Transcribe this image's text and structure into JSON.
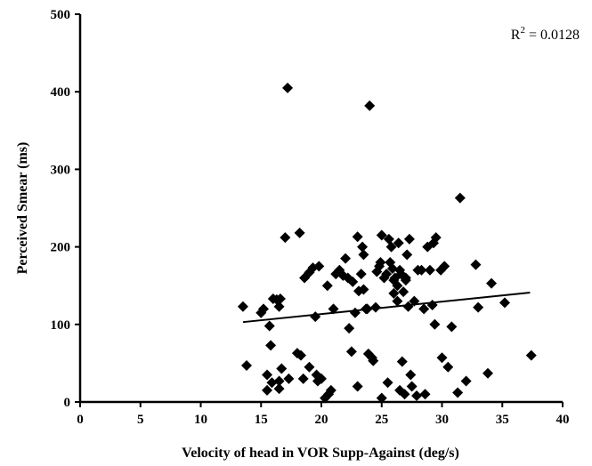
{
  "chart_data": {
    "type": "scatter",
    "xlabel": "Velocity of head in VOR Supp-Against (deg/s)",
    "ylabel": "Perceived Smear (ms)",
    "xlim": [
      0,
      40
    ],
    "ylim": [
      0,
      500
    ],
    "xticks": [
      0,
      5,
      10,
      15,
      20,
      25,
      30,
      35,
      40
    ],
    "yticks": [
      0,
      100,
      200,
      300,
      400,
      500
    ],
    "grid": false,
    "annotation": {
      "prefix": "R",
      "superscript": "2",
      "suffix": " = 0.0128"
    },
    "trendline": {
      "x": [
        13.5,
        37.3
      ],
      "y": [
        103,
        141
      ]
    },
    "points": [
      [
        13.5,
        123
      ],
      [
        13.8,
        47
      ],
      [
        15.0,
        115
      ],
      [
        15.2,
        120
      ],
      [
        15.5,
        35
      ],
      [
        15.5,
        15
      ],
      [
        15.7,
        98
      ],
      [
        15.8,
        73
      ],
      [
        15.9,
        25
      ],
      [
        16.0,
        133
      ],
      [
        16.3,
        132
      ],
      [
        16.5,
        123
      ],
      [
        16.5,
        27
      ],
      [
        16.5,
        17
      ],
      [
        16.6,
        133
      ],
      [
        16.7,
        43
      ],
      [
        17.0,
        212
      ],
      [
        17.2,
        405
      ],
      [
        17.3,
        30
      ],
      [
        18.0,
        63
      ],
      [
        18.2,
        218
      ],
      [
        18.3,
        60
      ],
      [
        18.5,
        30
      ],
      [
        18.6,
        160
      ],
      [
        19.0,
        45
      ],
      [
        19.0,
        167
      ],
      [
        19.3,
        173
      ],
      [
        19.5,
        110
      ],
      [
        19.6,
        35
      ],
      [
        19.7,
        27
      ],
      [
        19.8,
        175
      ],
      [
        20.0,
        30
      ],
      [
        20.3,
        5
      ],
      [
        20.5,
        150
      ],
      [
        20.6,
        10
      ],
      [
        20.8,
        15
      ],
      [
        21.0,
        120
      ],
      [
        21.2,
        165
      ],
      [
        21.5,
        170
      ],
      [
        21.8,
        163
      ],
      [
        22.0,
        185
      ],
      [
        22.2,
        160
      ],
      [
        22.3,
        95
      ],
      [
        22.5,
        65
      ],
      [
        22.6,
        155
      ],
      [
        22.8,
        115
      ],
      [
        23.0,
        213
      ],
      [
        23.0,
        20
      ],
      [
        23.1,
        143
      ],
      [
        23.3,
        165
      ],
      [
        23.4,
        200
      ],
      [
        23.5,
        145
      ],
      [
        23.5,
        190
      ],
      [
        23.7,
        120
      ],
      [
        23.8,
        120
      ],
      [
        23.9,
        62
      ],
      [
        24.0,
        382
      ],
      [
        24.2,
        57
      ],
      [
        24.3,
        53
      ],
      [
        24.5,
        122
      ],
      [
        24.6,
        168
      ],
      [
        24.8,
        175
      ],
      [
        24.9,
        180
      ],
      [
        25.0,
        215
      ],
      [
        25.0,
        5
      ],
      [
        25.2,
        160
      ],
      [
        25.4,
        165
      ],
      [
        25.5,
        25
      ],
      [
        25.6,
        210
      ],
      [
        25.7,
        180
      ],
      [
        25.8,
        200
      ],
      [
        25.9,
        172
      ],
      [
        26.0,
        140
      ],
      [
        26.0,
        157
      ],
      [
        26.1,
        160
      ],
      [
        26.3,
        130
      ],
      [
        26.3,
        150
      ],
      [
        26.4,
        205
      ],
      [
        26.5,
        170
      ],
      [
        26.5,
        15
      ],
      [
        26.6,
        165
      ],
      [
        26.7,
        52
      ],
      [
        26.8,
        142
      ],
      [
        26.9,
        10
      ],
      [
        27.0,
        157
      ],
      [
        27.0,
        160
      ],
      [
        27.1,
        190
      ],
      [
        27.2,
        123
      ],
      [
        27.3,
        210
      ],
      [
        27.4,
        35
      ],
      [
        27.5,
        20
      ],
      [
        27.7,
        130
      ],
      [
        27.9,
        8
      ],
      [
        28.0,
        170
      ],
      [
        28.3,
        170
      ],
      [
        28.5,
        120
      ],
      [
        28.6,
        10
      ],
      [
        28.8,
        200
      ],
      [
        29.0,
        170
      ],
      [
        29.2,
        125
      ],
      [
        29.3,
        205
      ],
      [
        29.4,
        100
      ],
      [
        29.5,
        212
      ],
      [
        29.9,
        170
      ],
      [
        30.0,
        57
      ],
      [
        30.2,
        175
      ],
      [
        30.5,
        45
      ],
      [
        30.8,
        97
      ],
      [
        31.3,
        12
      ],
      [
        31.5,
        263
      ],
      [
        32.0,
        27
      ],
      [
        32.8,
        177
      ],
      [
        33.0,
        122
      ],
      [
        33.8,
        37
      ],
      [
        34.1,
        153
      ],
      [
        35.2,
        128
      ],
      [
        37.4,
        60
      ]
    ]
  }
}
